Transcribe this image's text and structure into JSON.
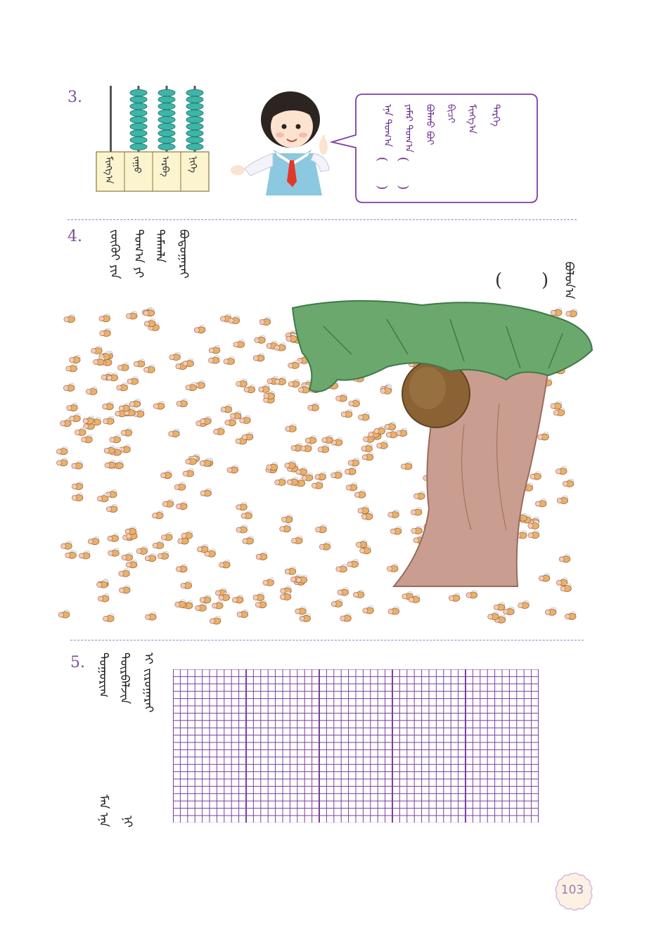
{
  "problems": [
    {
      "number": "3."
    },
    {
      "number": "4."
    },
    {
      "number": "5."
    }
  ],
  "p3": {
    "abacus_labels": [
      "ᠮᠢᠩᠭ᠎ᠠ",
      "ᠵᠠᠭᠤ",
      "ᠠᠷᠪᠠ",
      "ᠨᠢᠭᠡ"
    ],
    "speech_lines": [
      "ᠡᠨᠡ ᠲᠣᠭ᠎ᠠ",
      "ᠶᠠᠮᠠᠷ ᠲᠣᠭ᠎ᠠ",
      "ᠪᠣᠯᠬᠤ ᠪᠤᠢ",
      "ᠪᠢᠴᠢ",
      "ᠮᠢᠩᠭ᠎ᠠ",
      "ᠲᠡᠷᠭᠡ"
    ],
    "speech_parens": [
      "(",
      ")",
      "(",
      ")"
    ],
    "bead_color": "#3fb5a8"
  },
  "p4": {
    "question_lines": [
      "ᠵᠦᠭᠦᠢ ᠶᠢᠨ",
      "ᠲᠣᠭ᠎ᠠ ᠶᠢ",
      "ᠲᠠᠮᠠᠭᠯᠠ",
      "ᠪᠣᠳᠣᠭᠠᠷᠠᠢ"
    ],
    "answer_open": "(",
    "answer_close": ")",
    "answer_label": "ᠪᠣᠯᠤᠨ᠎ᠠ",
    "bee_count_shown": 350
  },
  "p5": {
    "question_lines": [
      "ᠲᠣᠭᠤᠷᠢᠭ",
      "ᠳᠦᠷᠪᠡᠯᠵᠢᠨ",
      "ᠢ ᠵᠢᠷᠤᠭᠠᠷᠠᠢ",
      "ᠮᠠᠨ ᠡᠨᠡ",
      "ᠨᠢ"
    ],
    "grid_color": "#7a3fa0"
  },
  "page_number": "103"
}
